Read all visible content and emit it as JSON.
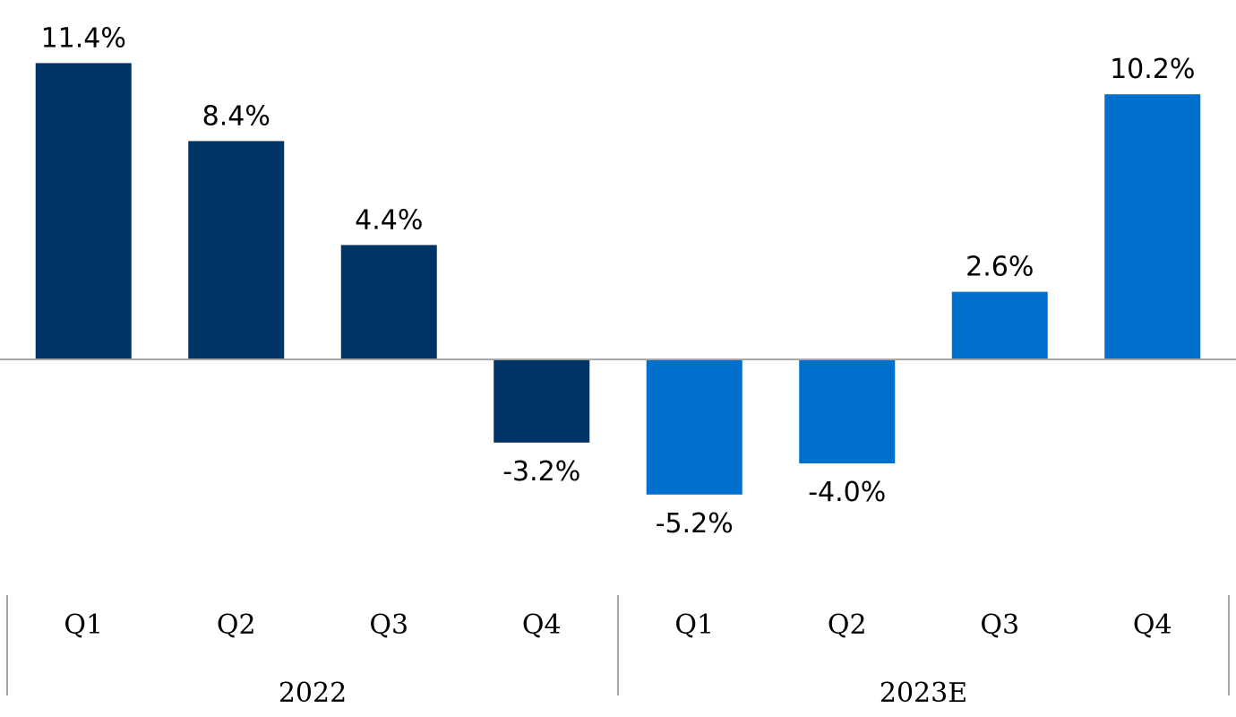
{
  "chart_data": {
    "type": "bar",
    "title": "",
    "xlabel": "",
    "ylabel": "",
    "ylim": [
      -6.8,
      12.4
    ],
    "grid": false,
    "legend": "none",
    "categories": [
      "Q1",
      "Q2",
      "Q3",
      "Q4",
      "Q1",
      "Q2",
      "Q3",
      "Q4"
    ],
    "values": [
      11.4,
      8.4,
      4.4,
      -3.2,
      -5.2,
      -4.0,
      2.6,
      10.2
    ],
    "data_labels": [
      "11.4%",
      "8.4%",
      "4.4%",
      "-3.2%",
      "-5.2%",
      "-4.0%",
      "2.6%",
      "10.2%"
    ],
    "groups": [
      {
        "label": "2022",
        "start": 0,
        "count": 4,
        "color": "#003366"
      },
      {
        "label": "2023E",
        "start": 4,
        "count": 4,
        "color": "#0070CE"
      }
    ],
    "axis_color": "#A6A6A6"
  }
}
